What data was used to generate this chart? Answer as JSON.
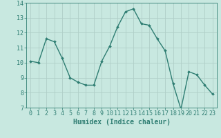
{
  "x": [
    0,
    1,
    2,
    3,
    4,
    5,
    6,
    7,
    8,
    9,
    10,
    11,
    12,
    13,
    14,
    15,
    16,
    17,
    18,
    19,
    20,
    21,
    22,
    23
  ],
  "y": [
    10.1,
    10.0,
    11.6,
    11.4,
    10.3,
    9.0,
    8.7,
    8.5,
    8.5,
    10.1,
    11.1,
    12.4,
    13.4,
    13.6,
    12.6,
    12.5,
    11.6,
    10.8,
    8.6,
    6.9,
    9.4,
    9.2,
    8.5,
    7.9
  ],
  "line_color": "#2E7D72",
  "marker": "D",
  "marker_size": 2,
  "bg_color": "#C8E8E0",
  "grid_color": "#B0CEC8",
  "xlabel": "Humidex (Indice chaleur)",
  "ylim": [
    7,
    14
  ],
  "xlim": [
    -0.5,
    23.5
  ],
  "yticks": [
    7,
    8,
    9,
    10,
    11,
    12,
    13,
    14
  ],
  "xticks": [
    0,
    1,
    2,
    3,
    4,
    5,
    6,
    7,
    8,
    9,
    10,
    11,
    12,
    13,
    14,
    15,
    16,
    17,
    18,
    19,
    20,
    21,
    22,
    23
  ],
  "tick_color": "#2E7D72",
  "label_color": "#2E7D72",
  "font_size_label": 7,
  "font_size_tick": 6,
  "linewidth": 1.0
}
